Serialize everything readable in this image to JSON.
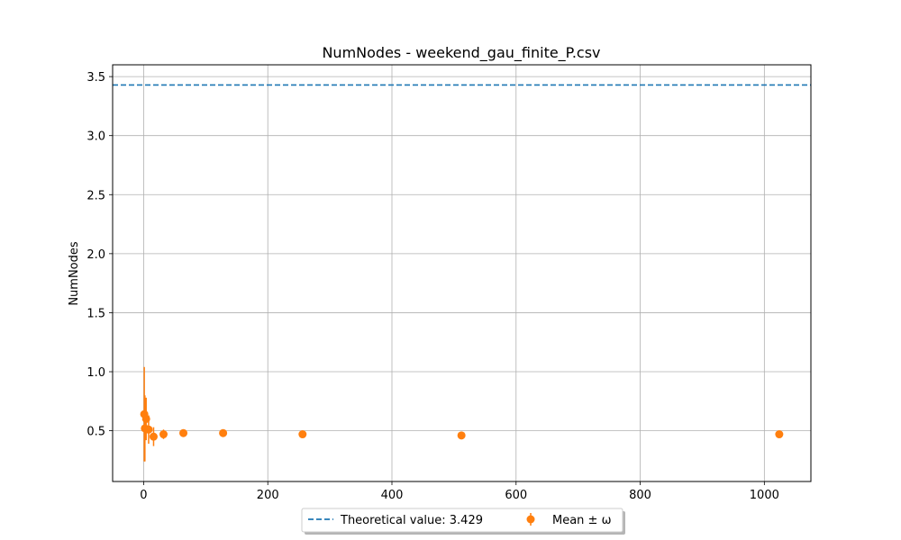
{
  "chart_data": {
    "type": "scatter",
    "title": "NumNodes - weekend_gau_finite_P.csv",
    "xlabel": "",
    "ylabel": "NumNodes",
    "xlim": [
      -50,
      1075
    ],
    "ylim": [
      0.07,
      3.6
    ],
    "xticks": [
      0,
      200,
      400,
      600,
      800,
      1000
    ],
    "yticks": [
      0.5,
      1.0,
      1.5,
      2.0,
      2.5,
      3.0,
      3.5
    ],
    "xtick_labels": [
      "0",
      "200",
      "400",
      "600",
      "800",
      "1000"
    ],
    "ytick_labels": [
      "0.5",
      "1.0",
      "1.5",
      "2.0",
      "2.5",
      "3.0",
      "3.5"
    ],
    "grid": true,
    "legend_position": "below-center",
    "theoretical": {
      "label": "Theoretical value: 3.429",
      "value": 3.429,
      "color": "#1f77b4",
      "style": "dashed"
    },
    "series": [
      {
        "name": "Mean ± ω",
        "color": "#ff7f0e",
        "points": [
          {
            "x": 1,
            "y": 0.64,
            "err": 0.4
          },
          {
            "x": 2,
            "y": 0.52,
            "err": 0.28
          },
          {
            "x": 4,
            "y": 0.6,
            "err": 0.18
          },
          {
            "x": 8,
            "y": 0.51,
            "err": 0.12
          },
          {
            "x": 16,
            "y": 0.45,
            "err": 0.08
          },
          {
            "x": 32,
            "y": 0.47,
            "err": 0.04
          },
          {
            "x": 64,
            "y": 0.48,
            "err": 0.02
          },
          {
            "x": 128,
            "y": 0.48,
            "err": 0.01
          },
          {
            "x": 256,
            "y": 0.47,
            "err": 0.01
          },
          {
            "x": 512,
            "y": 0.46,
            "err": 0.005
          },
          {
            "x": 1024,
            "y": 0.47,
            "err": 0.005
          }
        ]
      }
    ]
  }
}
